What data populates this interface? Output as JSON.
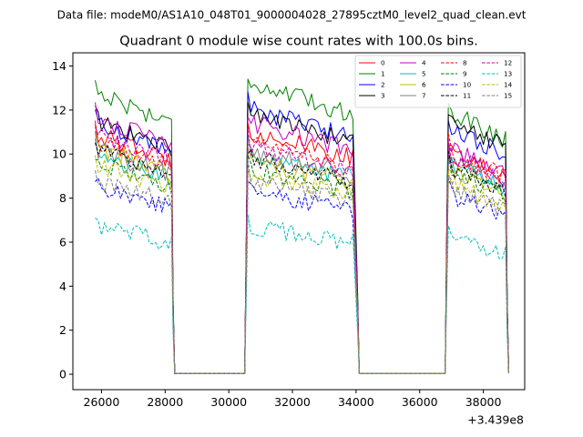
{
  "figure": {
    "suptitle": "Data file: modeM0/AS1A10_048T01_9000004028_27895cztM0_level2_quad_clean.evt"
  },
  "chart_data": {
    "type": "line",
    "title": "Quadrant 0 module wise count rates with 100.0s bins.",
    "xlabel": "",
    "ylabel": "",
    "x_offset_label": "+3.439e8",
    "xlim": [
      25100,
      39300
    ],
    "ylim": [
      -0.7,
      14.6
    ],
    "xticks": [
      26000,
      28000,
      30000,
      32000,
      34000,
      36000,
      38000
    ],
    "xtick_labels": [
      "26000",
      "28000",
      "30000",
      "32000",
      "34000",
      "36000",
      "38000"
    ],
    "yticks": [
      0,
      2,
      4,
      6,
      8,
      10,
      12,
      14
    ],
    "ytick_labels": [
      "0",
      "2",
      "4",
      "6",
      "8",
      "10",
      "12",
      "14"
    ],
    "legend_location": "top-right",
    "legend_columns": 4,
    "bin_width_s": 100,
    "segments": [
      {
        "x_start": 25800,
        "x_end": 28200,
        "x_drop": 28300
      },
      {
        "x_start": 30600,
        "x_end": 33900,
        "x_drop": 34100
      },
      {
        "x_start": 36900,
        "x_end": 38700,
        "x_drop": 38800
      }
    ],
    "gaps": [
      {
        "x_start": 28300,
        "x_end": 30500
      },
      {
        "x_start": 34100,
        "x_end": 36800
      }
    ],
    "series": [
      {
        "name": "0",
        "color": "#ff0000",
        "dash": "solid",
        "levels": [
          10.2,
          10.3,
          9.4
        ]
      },
      {
        "name": "1",
        "color": "#008000",
        "dash": "solid",
        "levels": [
          12.0,
          12.4,
          11.2
        ]
      },
      {
        "name": "2",
        "color": "#0000ff",
        "dash": "solid",
        "levels": [
          10.7,
          11.3,
          10.5
        ]
      },
      {
        "name": "3",
        "color": "#000000",
        "dash": "solid",
        "levels": [
          10.8,
          11.1,
          10.8
        ]
      },
      {
        "name": "4",
        "color": "#bf00bf",
        "dash": "solid",
        "levels": [
          10.9,
          10.7,
          9.6
        ]
      },
      {
        "name": "5",
        "color": "#00bfbf",
        "dash": "solid",
        "levels": [
          9.3,
          9.4,
          8.9
        ]
      },
      {
        "name": "6",
        "color": "#bfbf00",
        "dash": "solid",
        "levels": [
          9.6,
          9.1,
          8.6
        ]
      },
      {
        "name": "7",
        "color": "#808080",
        "dash": "solid",
        "levels": [
          9.5,
          9.5,
          9.0
        ]
      },
      {
        "name": "8",
        "color": "#ff0000",
        "dash": "dashed",
        "levels": [
          9.9,
          9.8,
          9.4
        ]
      },
      {
        "name": "9",
        "color": "#008000",
        "dash": "dashed",
        "levels": [
          9.0,
          8.7,
          8.6
        ]
      },
      {
        "name": "10",
        "color": "#0000ff",
        "dash": "dashed",
        "levels": [
          8.0,
          7.8,
          7.6
        ]
      },
      {
        "name": "11",
        "color": "#000000",
        "dash": "dashed",
        "levels": [
          9.6,
          9.2,
          8.8
        ]
      },
      {
        "name": "12",
        "color": "#bf00bf",
        "dash": "dashed",
        "levels": [
          10.2,
          9.7,
          9.3
        ]
      },
      {
        "name": "13",
        "color": "#00bfbf",
        "dash": "dashed",
        "levels": [
          6.3,
          6.3,
          5.7
        ]
      },
      {
        "name": "14",
        "color": "#bfbf00",
        "dash": "dashed",
        "levels": [
          8.9,
          8.5,
          8.1
        ]
      },
      {
        "name": "15",
        "color": "#808080",
        "dash": "dashed",
        "levels": [
          8.2,
          8.3,
          7.9
        ]
      }
    ]
  }
}
